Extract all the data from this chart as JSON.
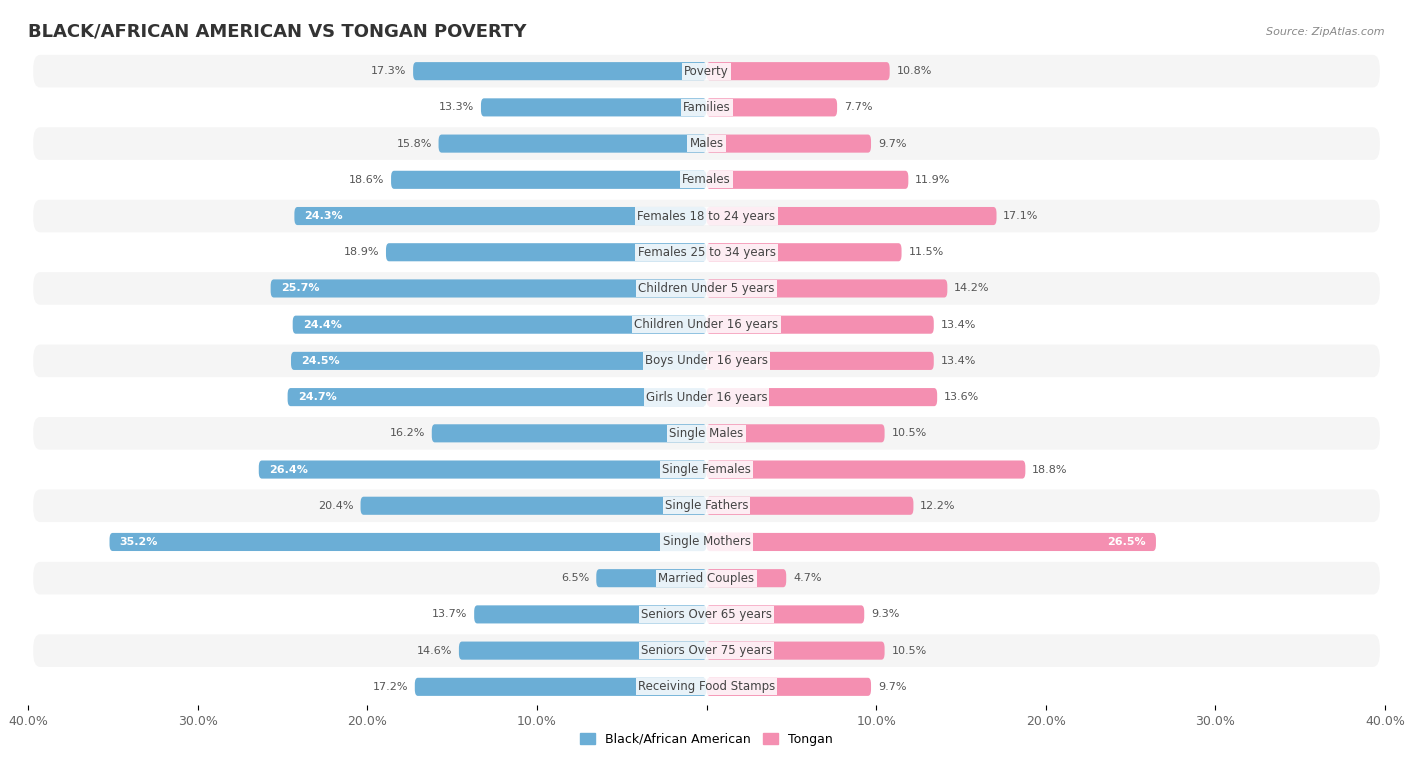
{
  "title": "BLACK/AFRICAN AMERICAN VS TONGAN POVERTY",
  "source": "Source: ZipAtlas.com",
  "categories": [
    "Poverty",
    "Families",
    "Males",
    "Females",
    "Females 18 to 24 years",
    "Females 25 to 34 years",
    "Children Under 5 years",
    "Children Under 16 years",
    "Boys Under 16 years",
    "Girls Under 16 years",
    "Single Males",
    "Single Females",
    "Single Fathers",
    "Single Mothers",
    "Married Couples",
    "Seniors Over 65 years",
    "Seniors Over 75 years",
    "Receiving Food Stamps"
  ],
  "black_values": [
    17.3,
    13.3,
    15.8,
    18.6,
    24.3,
    18.9,
    25.7,
    24.4,
    24.5,
    24.7,
    16.2,
    26.4,
    20.4,
    35.2,
    6.5,
    13.7,
    14.6,
    17.2
  ],
  "tongan_values": [
    10.8,
    7.7,
    9.7,
    11.9,
    17.1,
    11.5,
    14.2,
    13.4,
    13.4,
    13.6,
    10.5,
    18.8,
    12.2,
    26.5,
    4.7,
    9.3,
    10.5,
    9.7
  ],
  "black_color": "#6BAED6",
  "tongan_color": "#F48FB1",
  "black_label": "Black/African American",
  "tongan_label": "Tongan",
  "xlim": 40.0,
  "background_color": "#ffffff",
  "row_bg_even": "#f5f5f5",
  "row_bg_odd": "#ffffff",
  "title_fontsize": 13,
  "label_fontsize": 8.5,
  "value_fontsize": 8,
  "axis_fontsize": 9,
  "legend_fontsize": 9,
  "white_text_threshold": 20.5
}
